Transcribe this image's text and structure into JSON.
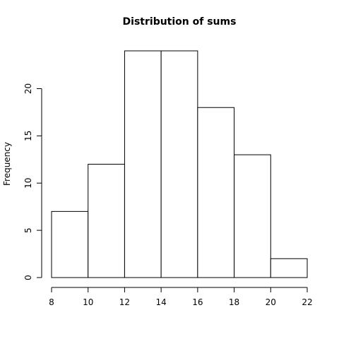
{
  "chart_data": {
    "type": "bar",
    "title": "Distribution of sums",
    "xlabel": "",
    "ylabel": "Frequency",
    "bins": [
      {
        "from": 8,
        "to": 10,
        "count": 7
      },
      {
        "from": 10,
        "to": 12,
        "count": 12
      },
      {
        "from": 12,
        "to": 14,
        "count": 24
      },
      {
        "from": 14,
        "to": 16,
        "count": 24
      },
      {
        "from": 16,
        "to": 18,
        "count": 18
      },
      {
        "from": 18,
        "to": 20,
        "count": 13
      },
      {
        "from": 20,
        "to": 22,
        "count": 2
      }
    ],
    "xlim": [
      8,
      22
    ],
    "ylim": [
      0,
      24
    ],
    "x_ticks": [
      "8",
      "10",
      "12",
      "14",
      "16",
      "18",
      "20",
      "22"
    ],
    "y_ticks": [
      "0",
      "5",
      "10",
      "15",
      "20"
    ],
    "colors": {
      "bar_fill": "#ffffff",
      "bar_stroke": "#000000"
    },
    "grid": false,
    "legend": "none"
  }
}
